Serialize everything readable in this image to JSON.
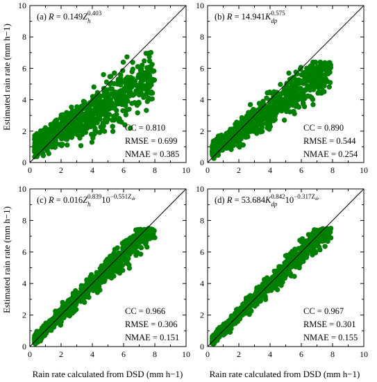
{
  "figure": {
    "xlabel_left": "Rain rate calculated  from DSD (mm h−1)",
    "xlabel_right": "Rain rate calculated  from DSD (mm h−1)",
    "ylabel_top": "Estimated rain rate (mm h−1)",
    "ylabel_bottom": "Estimated rain rate (mm h−1)"
  },
  "colors": {
    "points": "#008000",
    "line": "#000000"
  },
  "chart_data": [
    {
      "type": "scatter",
      "panel": "a",
      "title_parts": {
        "label": "(a) ",
        "var": "R",
        "eq": " = 0.149",
        "sym": "Z",
        "sub": "h",
        "sup": "0.403"
      },
      "stats": {
        "cc": "CC = 0.810",
        "rmse": "RMSE = 0.699",
        "nmae": "NMAE = 0.385"
      },
      "xlim": [
        0,
        10
      ],
      "ylim": [
        0,
        10
      ],
      "xticks": [
        "0",
        "2",
        "4",
        "6",
        "8",
        "10"
      ],
      "yticks": [
        "0",
        "2",
        "4",
        "6",
        "8",
        "10"
      ],
      "reference_line": "1:1",
      "spread": {
        "slope": 0.57,
        "intercept": 0.95,
        "noise": 0.55,
        "max_est": 7.8
      }
    },
    {
      "type": "scatter",
      "panel": "b",
      "title_parts": {
        "label": "(b) ",
        "var": "R",
        "eq": " = 14.941",
        "sym": "K",
        "sub": "dp",
        "sup": "0.575"
      },
      "stats": {
        "cc": "CC = 0.890",
        "rmse": "RMSE = 0.544",
        "nmae": "NMAE = 0.254"
      },
      "xlim": [
        0,
        10
      ],
      "ylim": [
        0,
        10
      ],
      "xticks": [
        "0",
        "2",
        "4",
        "6",
        "8",
        "10"
      ],
      "yticks": [
        "0",
        "2",
        "4",
        "6",
        "8",
        "10"
      ],
      "reference_line": "1:1",
      "spread": {
        "slope": 0.7,
        "intercept": 0.55,
        "noise": 0.45,
        "max_est": 6.4
      }
    },
    {
      "type": "scatter",
      "panel": "c",
      "title_parts": {
        "label": "(c) ",
        "var": "R",
        "eq": " = 0.016",
        "sym": "Z",
        "sub": "h",
        "sup": "0.839",
        "extra": "10",
        "extra_sup": "−0.551Z",
        "extra_sub": "dr"
      },
      "stats": {
        "cc": "CC = 0.966",
        "rmse": "RMSE = 0.306",
        "nmae": "NMAE = 0.151"
      },
      "xlim": [
        0,
        10
      ],
      "ylim": [
        0,
        10
      ],
      "xticks": [
        "0",
        "2",
        "4",
        "6",
        "8",
        "10"
      ],
      "yticks": [
        "0",
        "2",
        "4",
        "6",
        "8",
        "10"
      ],
      "reference_line": "1:1",
      "spread": {
        "slope": 0.95,
        "intercept": 0.15,
        "noise": 0.28,
        "max_est": 7.5
      }
    },
    {
      "type": "scatter",
      "panel": "d",
      "title_parts": {
        "label": "(d) ",
        "var": "R",
        "eq": " = 53.684",
        "sym": "K",
        "sub": "dp",
        "sup": "0.842",
        "extra": "10",
        "extra_sup": "−0.317Z",
        "extra_sub": "dr"
      },
      "stats": {
        "cc": "CC = 0.967",
        "rmse": "RMSE = 0.301",
        "nmae": "NMAE = 0.155"
      },
      "xlim": [
        0,
        10
      ],
      "ylim": [
        0,
        10
      ],
      "xticks": [
        "0",
        "2",
        "4",
        "6",
        "8",
        "10"
      ],
      "yticks": [
        "0",
        "2",
        "4",
        "6",
        "8",
        "10"
      ],
      "reference_line": "1:1",
      "spread": {
        "slope": 0.96,
        "intercept": 0.12,
        "noise": 0.27,
        "max_est": 7.5
      }
    }
  ]
}
